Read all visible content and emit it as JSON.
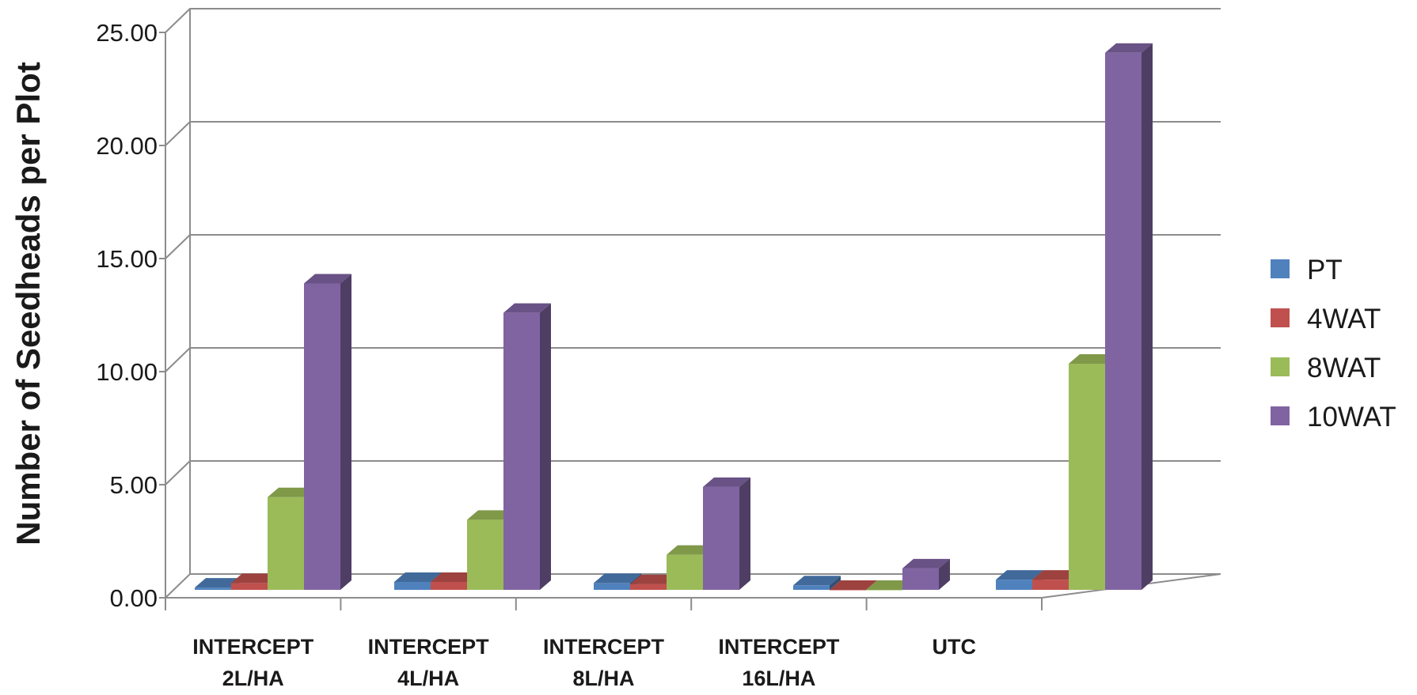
{
  "chart_data": {
    "type": "bar",
    "title": "",
    "xlabel": "",
    "ylabel": "Number of Seedheads per Plot",
    "ylim": [
      0,
      25
    ],
    "yticks": [
      "0.00",
      "5.00",
      "10.00",
      "15.00",
      "20.00",
      "25.00"
    ],
    "grid": true,
    "legend_position": "right",
    "categories": [
      [
        "INTERCEPT",
        "2L/HA"
      ],
      [
        "INTERCEPT",
        "4L/HA"
      ],
      [
        "INTERCEPT",
        "8L/HA"
      ],
      [
        "INTERCEPT",
        "16L/HA"
      ],
      [
        "UTC"
      ]
    ],
    "series": [
      {
        "name": "PT",
        "color": "#4F81BD",
        "values": [
          0.1,
          0.35,
          0.3,
          0.2,
          0.45
        ]
      },
      {
        "name": "4WAT",
        "color": "#C0504D",
        "values": [
          0.3,
          0.35,
          0.25,
          0.0,
          0.45
        ]
      },
      {
        "name": "8WAT",
        "color": "#9BBB59",
        "values": [
          4.1,
          3.1,
          1.55,
          0.0,
          10.0
        ]
      },
      {
        "name": "10WAT",
        "color": "#8064A2",
        "values": [
          13.55,
          12.25,
          4.55,
          0.95,
          23.75
        ]
      }
    ]
  }
}
